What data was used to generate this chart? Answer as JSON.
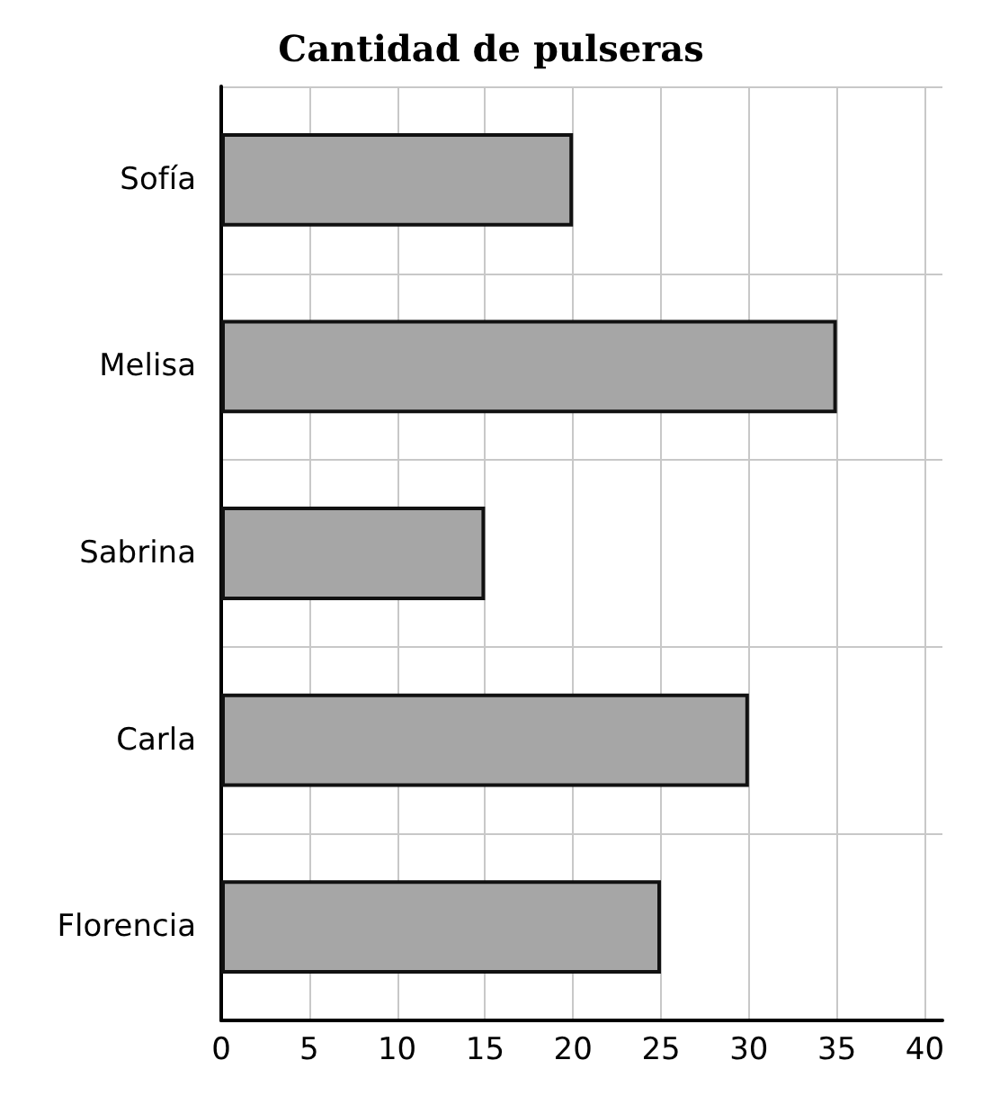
{
  "chart_data": {
    "type": "bar",
    "orientation": "horizontal",
    "title": "Cantidad de pulseras",
    "categories": [
      "Sofía",
      "Melisa",
      "Sabrina",
      "Carla",
      "Florencia"
    ],
    "values": [
      20,
      35,
      15,
      30,
      25
    ],
    "color": "#a6a6a6",
    "xlim": [
      0,
      41
    ],
    "xticks": [
      0,
      5,
      10,
      15,
      20,
      25,
      30,
      35,
      40
    ],
    "grid": true
  }
}
